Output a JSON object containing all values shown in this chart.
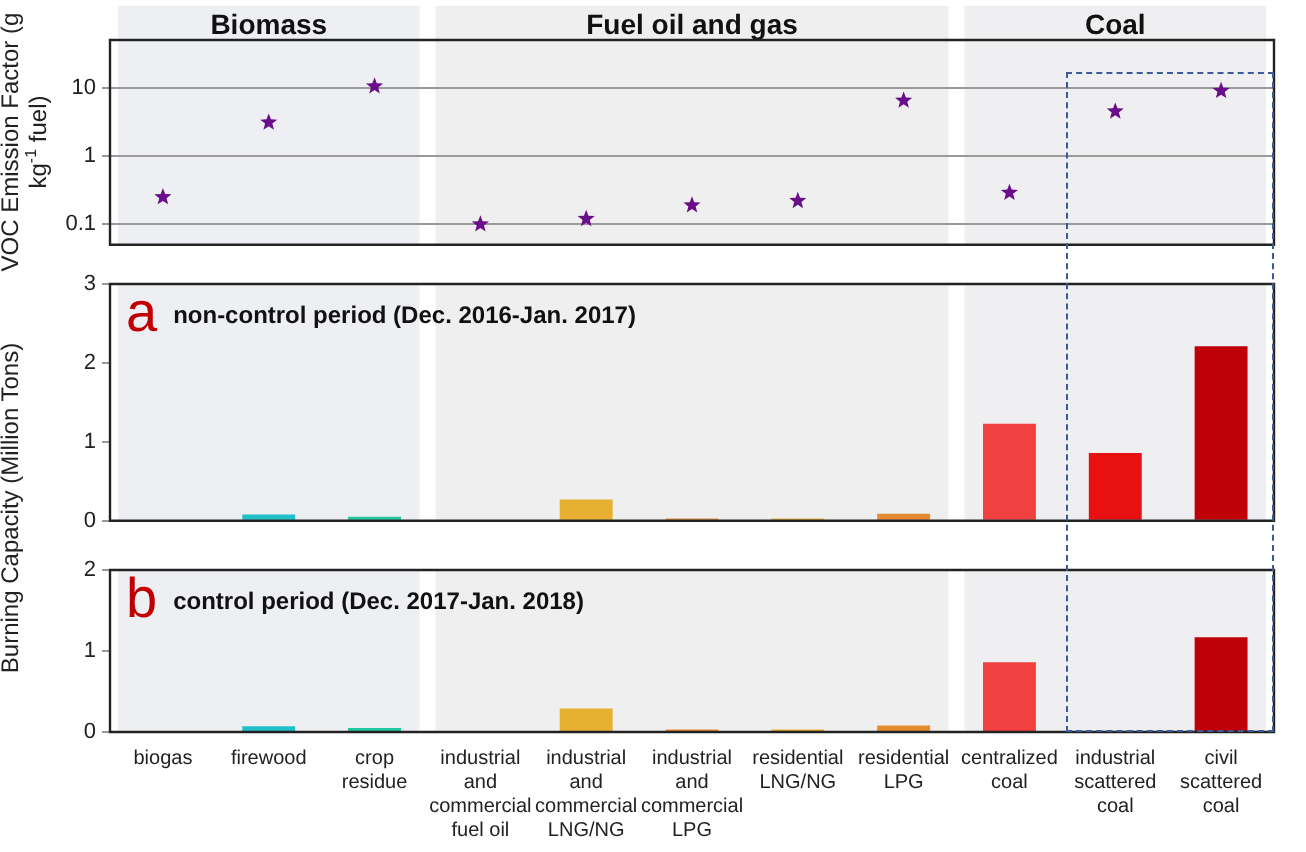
{
  "chart_data": [
    {
      "type": "scatter",
      "ylabel": "VOC Emission Factor (g kg$^{-1}$ fuel)",
      "categories": [
        "biogas",
        "firewood",
        "crop residue",
        "industrial and commercial fuel oil",
        "industrial and commercial LNG/NG",
        "industrial and commercial LPG",
        "residential LNG/NG",
        "residential LPG",
        "centralized coal",
        "industrial scattered coal",
        "civil scattered coal"
      ],
      "values": [
        0.25,
        3.1,
        10.5,
        0.1,
        0.12,
        0.19,
        0.22,
        6.5,
        0.29,
        4.5,
        9
      ],
      "color": "#6a0d8a",
      "marker": "star",
      "log": true,
      "grid": "y",
      "ylim": [
        0.05,
        50
      ],
      "yticks": [
        0.1,
        1,
        10
      ],
      "tick_labels": "y",
      "bands": [
        {
          "axis": "x",
          "from": "biogas",
          "to": "crop residue",
          "label": "Biomass",
          "color": "#eeeff3"
        },
        {
          "axis": "x",
          "from": "industrial and commercial fuel oil",
          "to": "residential LPG",
          "label": "Fuel oil and gas",
          "color": "#efefef"
        },
        {
          "axis": "x",
          "from": "centralized coal",
          "to": "civil scattered coal",
          "label": "Coal",
          "color": "#efeff1"
        }
      ]
    },
    {
      "type": "bar",
      "ylabel": "Burning Capacity (Million Tons)",
      "categories": [
        "biogas",
        "firewood",
        "crop residue",
        "industrial and commercial fuel oil",
        "industrial and commercial LNG/NG",
        "industrial and commercial LPG",
        "residential LNG/NG",
        "residential LPG",
        "centralized coal",
        "industrial scattered coal",
        "civil scattered coal"
      ],
      "values": [
        0,
        0.08,
        0.05,
        0,
        0.27,
        0.03,
        0.03,
        0.09,
        1.23,
        0.86,
        2.21
      ],
      "colors": [
        "#1fb8c8",
        "#1fc0c8",
        "#20c8a0",
        "#e8a830",
        "#e8b030",
        "#e88a30",
        "#e8b030",
        "#e88a30",
        "#f04040",
        "#e81010",
        "#c00008"
      ],
      "ylim": [
        0,
        3
      ],
      "yticks": [
        0,
        1,
        2,
        3
      ],
      "tick_labels": "y",
      "annotations": [
        "a",
        "non-control period (Dec. 2016-Jan. 2017)"
      ],
      "bands": [
        {
          "axis": "x",
          "from": "biogas",
          "to": "crop residue",
          "color": "#eeeff3"
        },
        {
          "axis": "x",
          "from": "industrial and commercial fuel oil",
          "to": "residential LPG",
          "color": "#efefef"
        },
        {
          "axis": "x",
          "from": "centralized coal",
          "to": "civil scattered coal",
          "color": "#efeff1"
        }
      ]
    },
    {
      "type": "bar",
      "categories": [
        "biogas",
        "firewood",
        "crop residue",
        "industrial and commercial fuel oil",
        "industrial and commercial LNG/NG",
        "industrial and commercial LPG",
        "residential LNG/NG",
        "residential LPG",
        "centralized coal",
        "industrial scattered coal",
        "civil scattered coal"
      ],
      "values": [
        0,
        0.07,
        0.05,
        0,
        0.29,
        0.03,
        0.03,
        0.08,
        0.86,
        0,
        1.17
      ],
      "colors": [
        "#1fb8c8",
        "#1fc0c8",
        "#20c8a0",
        "#e8a830",
        "#e8b030",
        "#e88a30",
        "#e8b030",
        "#e88a30",
        "#f04040",
        "#e81010",
        "#c00008"
      ],
      "ylim": [
        0,
        2
      ],
      "yticks": [
        0,
        1,
        2
      ],
      "annotations": [
        "b",
        "control period (Dec. 2017-Jan. 2018)"
      ],
      "bands": [
        {
          "axis": "x",
          "from": "biogas",
          "to": "crop residue",
          "color": "#eeeff3"
        },
        {
          "axis": "x",
          "from": "industrial and commercial fuel oil",
          "to": "residential LPG",
          "color": "#efefef"
        },
        {
          "axis": "x",
          "from": "centralized coal",
          "to": "civil scattered coal",
          "color": "#efeff1"
        }
      ]
    }
  ]
}
